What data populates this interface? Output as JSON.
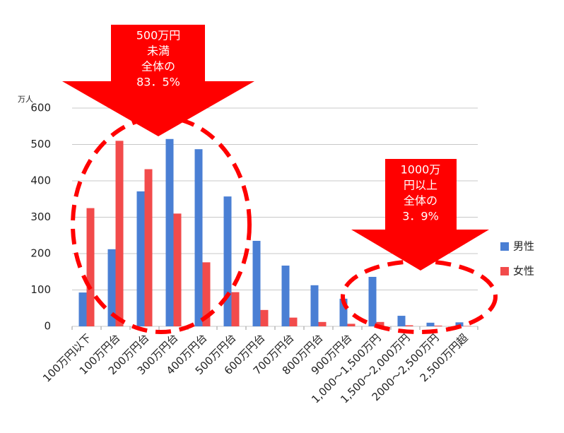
{
  "chart_data": {
    "type": "bar",
    "y_label": "万人",
    "categories": [
      "100万円以下",
      "100万円台",
      "200万円台",
      "300万円台",
      "400万円台",
      "500万円台",
      "600万円台",
      "700万円台",
      "800万円台",
      "900万円台",
      "1,000〜1,500万円",
      "1,500〜2,000万円",
      "2000〜2,500万円",
      "2,500万円超"
    ],
    "series": [
      {
        "name": "男性",
        "color": "#4a7fd4",
        "values": [
          93,
          212,
          371,
          515,
          487,
          357,
          235,
          167,
          113,
          76,
          136,
          29,
          10,
          11
        ]
      },
      {
        "name": "女性",
        "color": "#f24b4b",
        "values": [
          325,
          510,
          432,
          310,
          176,
          94,
          45,
          24,
          12,
          7,
          12,
          3,
          2,
          1
        ]
      }
    ],
    "ylim": [
      0,
      600
    ],
    "yticks": [
      0,
      100,
      200,
      300,
      400,
      500,
      600
    ],
    "grid": true,
    "annotations": [
      {
        "lines": [
          "500万円",
          "未満",
          "全体の",
          "83．5%"
        ]
      },
      {
        "lines": [
          "1000万",
          "円以上",
          "全体の",
          "3．9%"
        ]
      }
    ]
  }
}
